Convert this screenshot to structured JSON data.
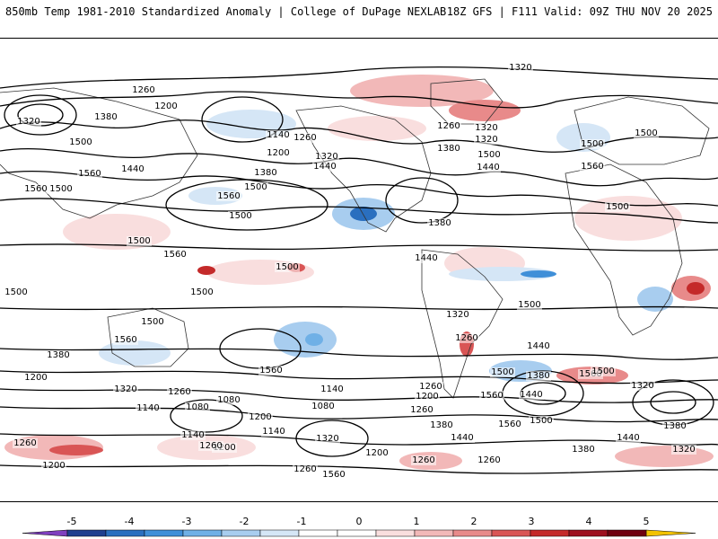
{
  "header": {
    "title": "850mb Temp 1981-2010 Standardized Anomaly | College of DuPage NEXLAB",
    "run_info": "18Z GFS | F111 Valid: 09Z THU NOV 20 2025"
  },
  "map": {
    "field": "850mb Temp Standardized Anomaly",
    "contour_field": "height (dam)",
    "contour_labels": [
      "1320",
      "1260",
      "1200",
      "1320",
      "1380",
      "1500",
      "1560",
      "1440",
      "1500",
      "1560",
      "1500",
      "1140",
      "1260",
      "1200",
      "1320",
      "1440",
      "1380",
      "1500",
      "1560",
      "1320",
      "1380",
      "1260",
      "1320",
      "1440",
      "1500",
      "1560",
      "1500",
      "1500",
      "1500",
      "1560",
      "1500",
      "1500",
      "1500",
      "1500",
      "1560",
      "1380",
      "1440",
      "1560",
      "1500",
      "1320",
      "1380",
      "1260",
      "1440",
      "1500",
      "1560",
      "1380",
      "1200",
      "1320",
      "1140",
      "1080",
      "1140",
      "1200",
      "1080",
      "1140",
      "1260",
      "1200",
      "1260",
      "1380",
      "1440",
      "1500",
      "1560",
      "1260",
      "1440",
      "1380",
      "1320",
      "1260",
      "1080",
      "1200",
      "1140",
      "1260",
      "1320",
      "1200",
      "1260",
      "1260",
      "1200",
      "1260",
      "1560",
      "1500",
      "1320",
      "1380",
      "1440",
      "1560",
      "1500"
    ]
  },
  "colorbar": {
    "ticks": [
      "-5",
      "-4",
      "-3",
      "-2",
      "-1",
      "0",
      "1",
      "2",
      "3",
      "4",
      "5"
    ],
    "colors": [
      "#7f3fbf",
      "#1f3f8f",
      "#2a6fbf",
      "#3f8fd8",
      "#6fb0e6",
      "#a8cdef",
      "#d5e6f6",
      "#ffffff",
      "#ffffff",
      "#f9dede",
      "#f2b8b8",
      "#e88a8a",
      "#d95555",
      "#c42a2a",
      "#9e0f1f",
      "#6f0010",
      "#f2c200"
    ]
  }
}
